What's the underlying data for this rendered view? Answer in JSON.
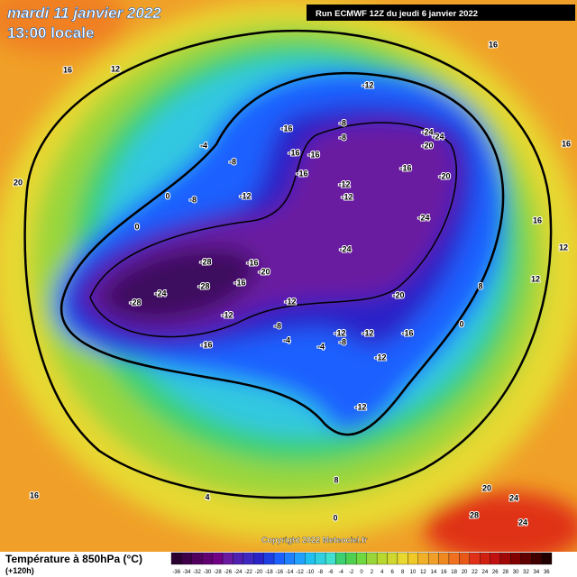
{
  "header": {
    "title": "mardi 11 janvier 2022",
    "time": "13:00 locale",
    "run": "Run ECMWF 12Z du jeudi 6 janvier 2022"
  },
  "footer": {
    "caption": "Température à 850hPa (°C)",
    "lead": "(+120h)",
    "copyright": "Copyright 2022 Meteociel.fr"
  },
  "colorbar": {
    "labels": [
      -36,
      -34,
      -32,
      -30,
      -28,
      -26,
      -24,
      -22,
      -20,
      -18,
      -16,
      -14,
      -12,
      -10,
      -8,
      -6,
      -4,
      -2,
      0,
      2,
      4,
      6,
      8,
      10,
      12,
      14,
      16,
      18,
      20,
      22,
      24,
      26,
      28,
      30,
      32,
      34,
      36
    ]
  },
  "contour_labels": [
    -12,
    -8,
    -8,
    -16,
    -16,
    -16,
    -16,
    -12,
    -12,
    -24,
    -24,
    -20,
    -16,
    -20,
    -24,
    -24,
    -28,
    -28,
    -28,
    -24,
    -16,
    -20,
    -16,
    -12,
    -12,
    -8,
    -16,
    -20,
    -16,
    -12,
    -12,
    -8,
    -4,
    -12,
    -12,
    -4,
    0,
    -8,
    -12,
    0,
    -4,
    -8,
    12,
    16,
    16,
    16,
    16,
    12,
    12,
    20,
    24,
    28,
    24,
    16,
    20,
    4,
    0,
    8,
    0,
    8
  ]
}
